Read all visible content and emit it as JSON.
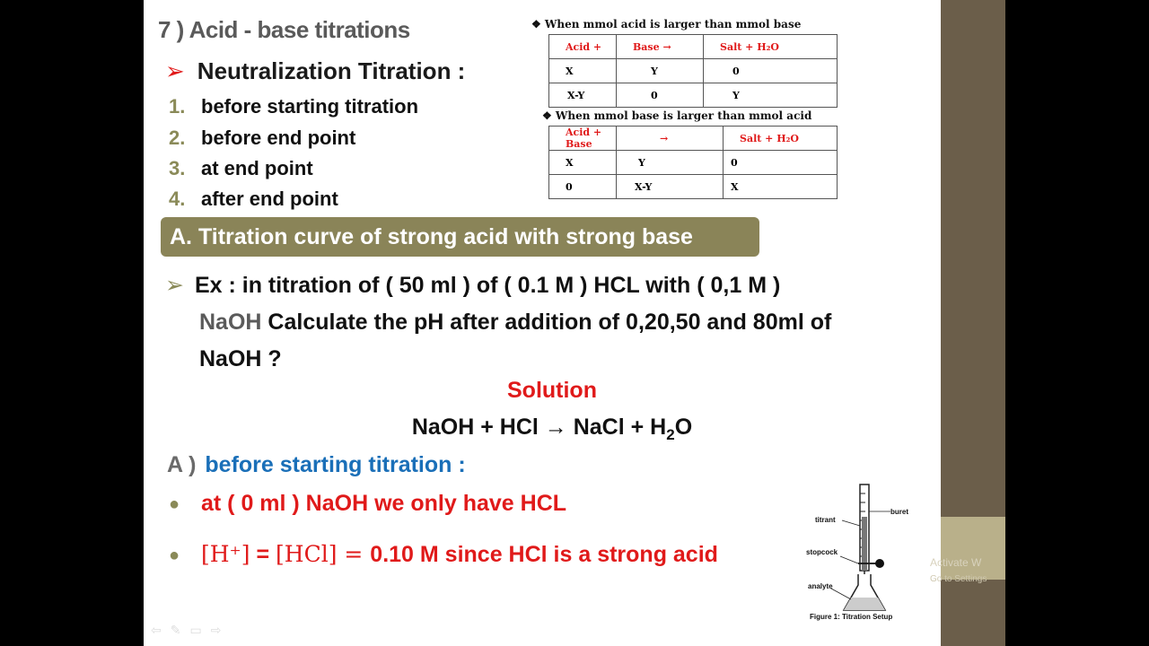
{
  "slide": {
    "title": "7 )  Acid - base  titrations",
    "subtitle": "Neutralization Titration :",
    "subtitle_arrow": "➢",
    "steps": [
      {
        "num": "1.",
        "text": "before starting titration"
      },
      {
        "num": "2.",
        "text": "before end point"
      },
      {
        "num": "3.",
        "text": "at end point"
      },
      {
        "num": "4.",
        "text": "after end point"
      }
    ],
    "banner": "A. Titration curve of strong acid with strong base",
    "example": {
      "marker": "➢",
      "line1": "Ex : in titration of ( 50 ml ) of ( 0.1 M ) HCL with ( 0,1 M )",
      "line2_naoh": "NaOH",
      "line2_rest": " Calculate the pH after addition of 0,20,50 and 80ml of",
      "line3": "NaOH ?"
    },
    "solution_label": "Solution",
    "equation": {
      "left": "NaOH + HCl → NaCl + H",
      "sub": "2",
      "right": "O"
    },
    "partA": {
      "label": "A )",
      "text": "before starting titration :"
    },
    "bullets": [
      {
        "text": "at ( 0 ml ) NaOH we only have HCL"
      },
      {
        "math1": "[H⁺]",
        "eq": " = ",
        "math2": "[HCl]",
        "eq2": " = ",
        "rest": "0.10 M since HCl is a strong acid"
      }
    ]
  },
  "tables": {
    "caption1": "❖  When mmol acid is larger than mmol base",
    "header1": [
      "Acid     +",
      "Base  →",
      "Salt   +     H₂O"
    ],
    "rows1": [
      [
        "X",
        "Y",
        "0"
      ],
      [
        "X-Y",
        "0",
        "Y"
      ]
    ],
    "caption2": "❖  When mmol base is larger than mmol acid",
    "header2": [
      "Acid   +   Base",
      "→",
      "Salt   +     H₂O"
    ],
    "rows2": [
      [
        "X",
        "Y",
        "0"
      ],
      [
        "0",
        "X-Y",
        "X"
      ]
    ]
  },
  "figure": {
    "labels": {
      "buret": "buret",
      "titrant": "titrant",
      "stopcock": "stopcock",
      "analyte": "analyte"
    },
    "caption": "Figure 1: Titration Setup"
  },
  "watermark": {
    "line1": "Activate W",
    "line2": "Go to Settings"
  }
}
